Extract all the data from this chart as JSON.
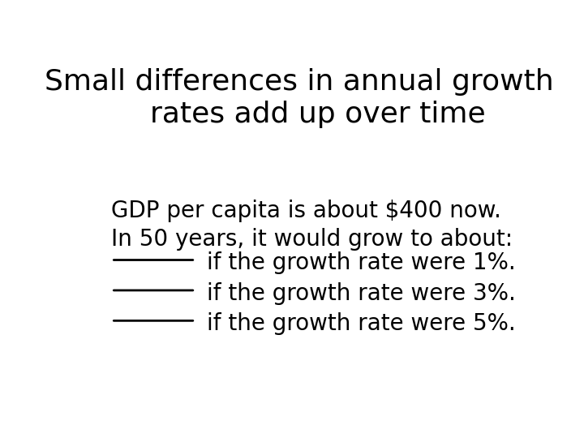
{
  "title_line1": "Small differences in annual growth",
  "title_line2": "    rates add up over time",
  "line1": "GDP per capita is about $400 now.",
  "line2": "In 50 years, it would grow to about:",
  "item1": "if the growth rate were 1%.",
  "item2": "if the growth rate were 3%.",
  "item3": "if the growth rate were 5%.",
  "bg_color": "#ffffff",
  "text_color": "#000000",
  "title_fontsize": 26,
  "body_fontsize": 20
}
